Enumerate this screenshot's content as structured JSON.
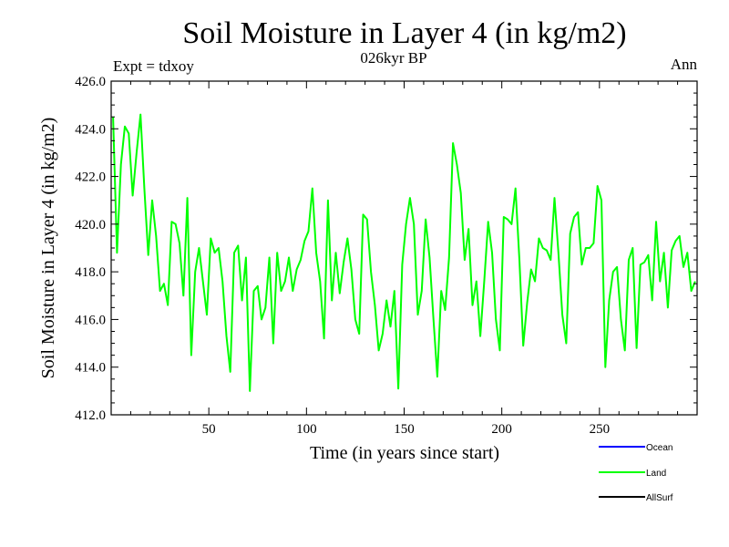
{
  "chart_data": {
    "type": "line",
    "title": "Soil Moisture in Layer 4 (in kg/m2)",
    "subtitle": "026kyr BP",
    "left_label": "Expt = tdxoy",
    "right_label": "Ann",
    "xlabel": "Time (in years since start)",
    "ylabel": "Soil Moisture in Layer 4 (in kg/m2)",
    "xlim": [
      0,
      300
    ],
    "ylim": [
      412.0,
      426.0
    ],
    "x_ticks": [
      50,
      100,
      150,
      200,
      250
    ],
    "x_tick_labels": [
      "50",
      "100",
      "150",
      "200",
      "250"
    ],
    "y_ticks": [
      412,
      414,
      416,
      418,
      420,
      422,
      424,
      426
    ],
    "y_tick_labels": [
      "412.0",
      "414.0",
      "416.0",
      "418.0",
      "420.0",
      "422.0",
      "424.0",
      "426.0"
    ],
    "grid": false,
    "legend_placement": "bottom-right",
    "legend": [
      {
        "name": "Ocean",
        "color": "#0000ff"
      },
      {
        "name": "Land",
        "color": "#00ff00"
      },
      {
        "name": "AllSurf",
        "color": "#000000"
      }
    ],
    "series": [
      {
        "name": "Land",
        "color": "#00ff00",
        "x": [
          1,
          3,
          5,
          7,
          9,
          11,
          13,
          15,
          17,
          19,
          21,
          23,
          25,
          27,
          29,
          31,
          33,
          35,
          37,
          39,
          41,
          43,
          45,
          47,
          49,
          51,
          53,
          55,
          57,
          59,
          61,
          63,
          65,
          67,
          69,
          71,
          73,
          75,
          77,
          79,
          81,
          83,
          85,
          87,
          89,
          91,
          93,
          95,
          97,
          99,
          101,
          103,
          105,
          107,
          109,
          111,
          113,
          115,
          117,
          119,
          121,
          123,
          125,
          127,
          129,
          131,
          133,
          135,
          137,
          139,
          141,
          143,
          145,
          147,
          149,
          151,
          153,
          155,
          157,
          159,
          161,
          163,
          165,
          167,
          169,
          171,
          173,
          175,
          177,
          179,
          181,
          183,
          185,
          187,
          189,
          191,
          193,
          195,
          197,
          199,
          201,
          203,
          205,
          207,
          209,
          211,
          213,
          215,
          217,
          219,
          221,
          223,
          225,
          227,
          229,
          231,
          233,
          235,
          237,
          239,
          241,
          243,
          245,
          247,
          249,
          251,
          253,
          255,
          257,
          259,
          261,
          263,
          265,
          267,
          269,
          271,
          273,
          275,
          277,
          279,
          281,
          283,
          285,
          287,
          289,
          291,
          293,
          295,
          297,
          299
        ],
        "values": [
          424.5,
          418.8,
          422.5,
          424.1,
          423.8,
          421.2,
          423.0,
          424.6,
          421.5,
          418.7,
          421.0,
          419.5,
          417.2,
          417.5,
          416.6,
          420.1,
          420.0,
          419.2,
          417.0,
          421.1,
          414.5,
          418.0,
          419.0,
          417.6,
          416.2,
          419.4,
          418.8,
          419.0,
          417.6,
          415.3,
          413.8,
          418.8,
          419.1,
          416.8,
          418.6,
          413.0,
          417.2,
          417.4,
          416.0,
          416.5,
          418.6,
          415.0,
          418.8,
          417.2,
          417.6,
          418.6,
          417.2,
          418.1,
          418.5,
          419.3,
          419.7,
          421.5,
          418.8,
          417.6,
          415.2,
          421.0,
          416.8,
          418.8,
          417.1,
          418.4,
          419.4,
          418.1,
          416.0,
          415.4,
          420.4,
          420.2,
          418.0,
          416.6,
          414.7,
          415.4,
          416.8,
          415.7,
          417.2,
          413.1,
          418.3,
          420.0,
          421.1,
          420.0,
          416.2,
          417.2,
          420.2,
          418.6,
          416.0,
          413.6,
          417.2,
          416.4,
          418.6,
          423.4,
          422.5,
          421.3,
          418.5,
          419.8,
          416.6,
          417.6,
          415.3,
          417.6,
          420.1,
          418.8,
          416.0,
          414.7,
          420.3,
          420.2,
          420.0,
          421.5,
          418.5,
          414.9,
          416.7,
          418.1,
          417.6,
          419.4,
          419.0,
          418.9,
          418.5,
          421.1,
          418.8,
          416.2,
          415.0,
          419.6,
          420.3,
          420.5,
          418.3,
          419.0,
          419.0,
          419.2,
          421.6,
          421.0,
          414.0,
          416.8,
          418.0,
          418.2,
          416.0,
          414.7,
          418.5,
          419.0,
          414.8,
          418.3,
          418.4,
          418.7,
          416.8,
          420.1,
          417.6,
          418.8,
          416.5,
          418.9,
          419.3,
          419.5,
          418.2,
          418.8,
          417.2,
          417.6
        ]
      }
    ]
  }
}
